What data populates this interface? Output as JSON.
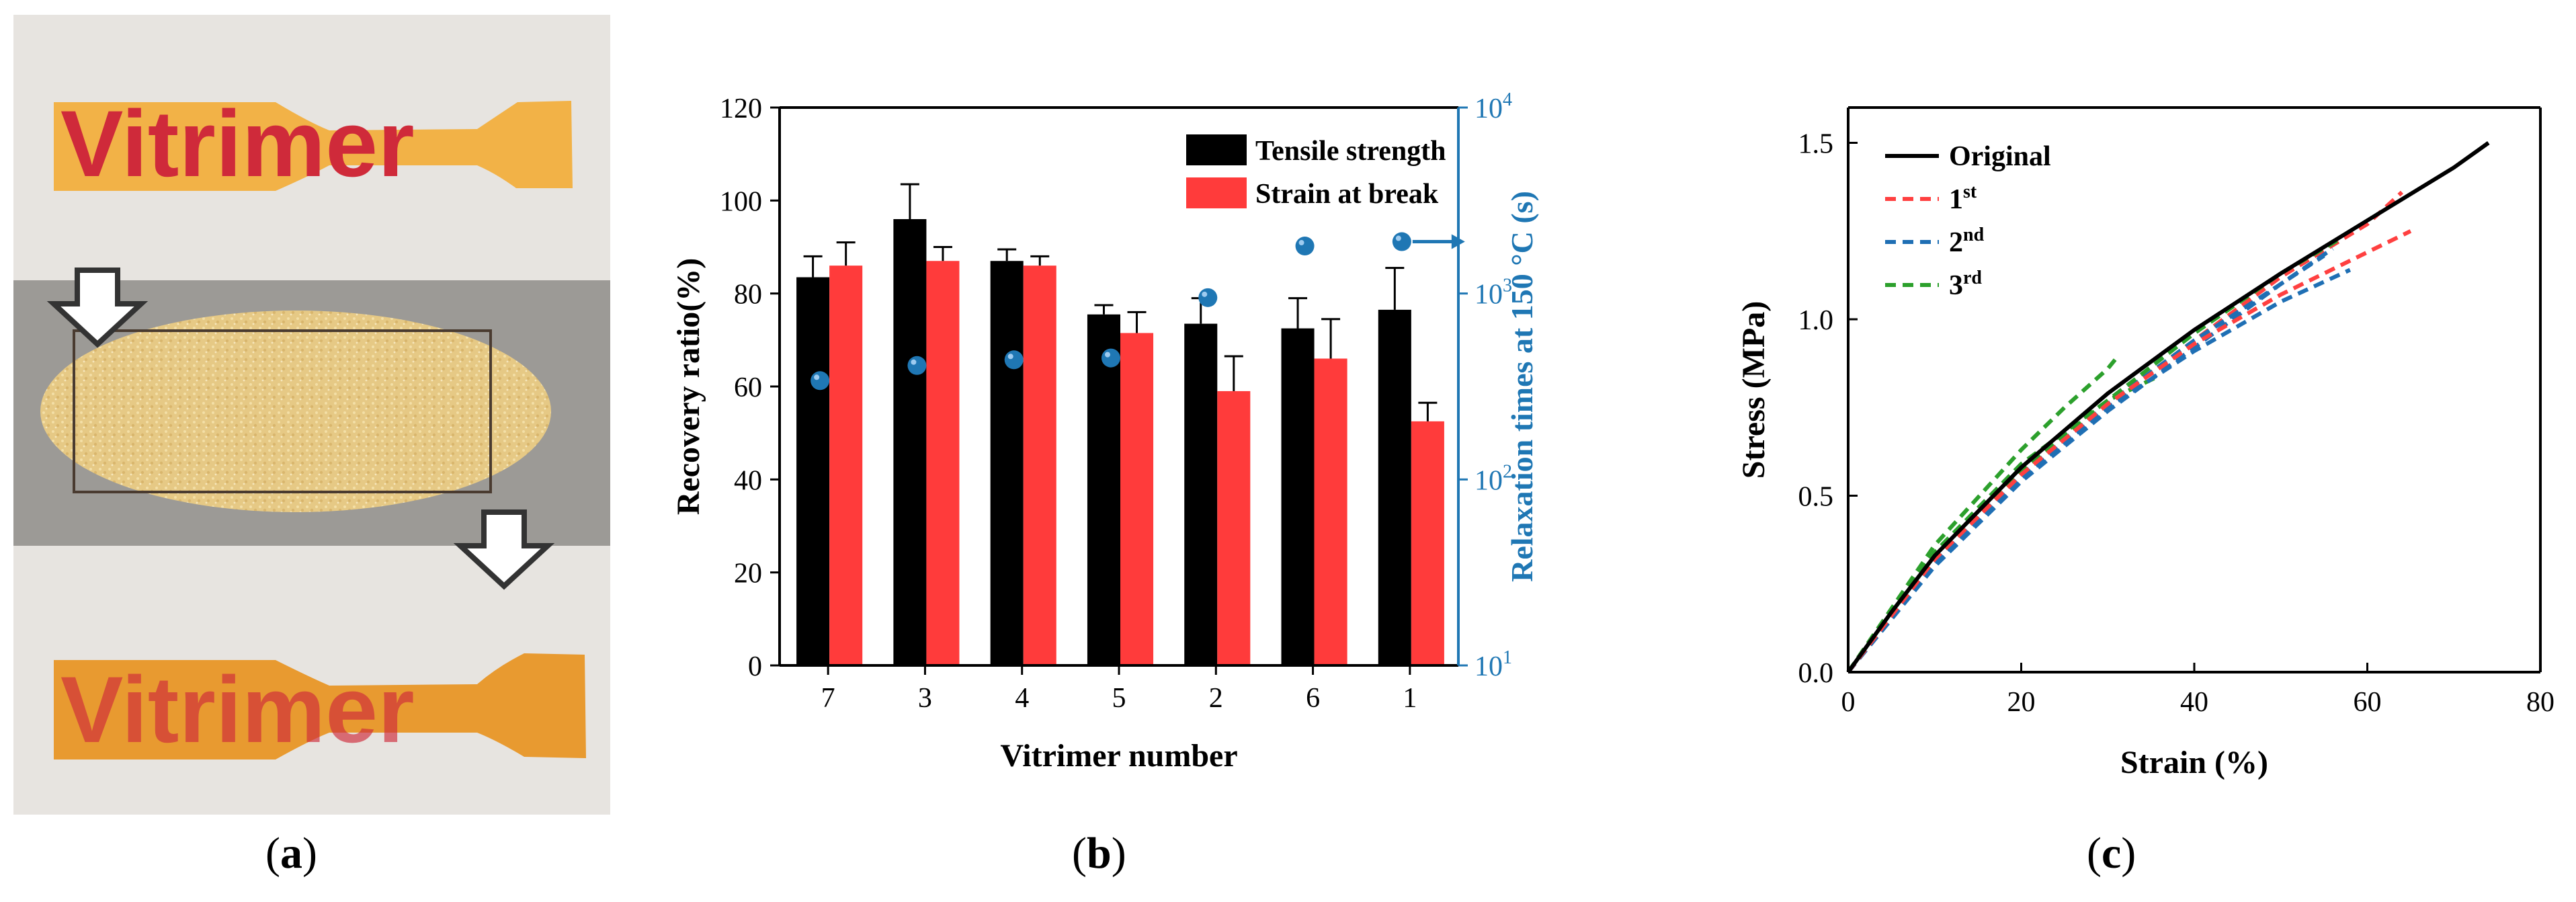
{
  "panel_labels": [
    {
      "open": "(",
      "letter": "a",
      "close": ")"
    },
    {
      "open": "(",
      "letter": "b",
      "close": ")"
    },
    {
      "open": "(",
      "letter": "c",
      "close": ")"
    }
  ],
  "photo": {
    "sample_text_top": "Vitrimer",
    "sample_text_bottom": "Vitrimer",
    "colors": {
      "strip_top": "#f2b247",
      "strip_bottom": "#e89a30",
      "ink": "#cf2a3a",
      "powder": "#e9cf8f",
      "tray": "#9c9a96",
      "background": "#e7e4e0",
      "arrow": "#333333"
    }
  },
  "chart_data": [
    {
      "type": "bar",
      "categories": [
        "7",
        "3",
        "4",
        "5",
        "2",
        "6",
        "1"
      ],
      "xlabel": "Vitrimer number",
      "ylabel": "Recovery ratio(%)",
      "ylim": [
        0,
        120
      ],
      "yticks": [
        0,
        20,
        40,
        60,
        80,
        100,
        120
      ],
      "series": [
        {
          "name": "Tensile strength",
          "color": "#000000",
          "values": [
            83.5,
            96,
            87,
            75.5,
            73.5,
            72.5,
            76.5
          ],
          "errors": [
            4.5,
            7.5,
            2.5,
            2,
            5.5,
            6.5,
            9
          ]
        },
        {
          "name": "Strain at break",
          "color": "#ff3b3b",
          "values": [
            86,
            87,
            86,
            71.5,
            59,
            66,
            52.5
          ],
          "errors": [
            5,
            3,
            2,
            4.5,
            7.5,
            8.5,
            4
          ]
        }
      ],
      "y2label": "Relaxation times at 150 °C (s)",
      "y2scale": "log",
      "y2lim": [
        10,
        10000
      ],
      "y2ticks": [
        {
          "base": "10",
          "exp": "1"
        },
        {
          "base": "10",
          "exp": "2"
        },
        {
          "base": "10",
          "exp": "3"
        },
        {
          "base": "10",
          "exp": "4"
        }
      ],
      "y2color": "#1f77b4",
      "relaxation_times": [
        340,
        410,
        440,
        450,
        950,
        1800,
        1900
      ],
      "arrow_on_last_point": true,
      "legend_position": "top-right",
      "grid": false
    },
    {
      "type": "line",
      "xlabel": "Strain (%)",
      "ylabel": "Stress (MPa)",
      "xlim": [
        0,
        80
      ],
      "ylim": [
        0,
        1.6
      ],
      "xticks": [
        "0",
        "20",
        "40",
        "60",
        "80"
      ],
      "yticks": [
        "0.0",
        "0.5",
        "1.0",
        "1.5"
      ],
      "legend_position": "top-left",
      "grid": false,
      "series": [
        {
          "name": "Original",
          "sup": "",
          "color": "#000000",
          "dash": "solid",
          "x": [
            0,
            5,
            10,
            20,
            30,
            40,
            50,
            60,
            70,
            74
          ],
          "y": [
            0,
            0.17,
            0.33,
            0.58,
            0.79,
            0.97,
            1.13,
            1.28,
            1.43,
            1.5
          ]
        },
        {
          "name": "1",
          "sup": "st",
          "color": "#ff4040",
          "dash": "dashed",
          "x": [
            0,
            10,
            20,
            30,
            40,
            50,
            60,
            65
          ],
          "y": [
            0,
            0.32,
            0.56,
            0.76,
            0.93,
            1.07,
            1.19,
            1.25
          ]
        },
        {
          "name": "2",
          "sup": "nd",
          "color": "#1f6fb4",
          "dash": "dashed",
          "x": [
            0,
            10,
            20,
            30,
            40,
            50,
            58
          ],
          "y": [
            0,
            0.31,
            0.55,
            0.75,
            0.91,
            1.05,
            1.14
          ]
        },
        {
          "name": "3",
          "sup": "rd",
          "color": "#2ca02c",
          "dash": "dashed",
          "x": [
            0,
            10,
            20,
            25,
            30,
            31
          ],
          "y": [
            0,
            0.36,
            0.63,
            0.75,
            0.86,
            0.89
          ]
        }
      ],
      "extra_curves": [
        {
          "color": "#ff4040",
          "x": [
            0,
            10,
            20,
            30,
            40,
            50,
            60,
            64
          ],
          "y": [
            0,
            0.32,
            0.56,
            0.76,
            0.94,
            1.12,
            1.27,
            1.36
          ]
        },
        {
          "color": "#1f6fb4",
          "x": [
            0,
            10,
            20,
            30,
            40,
            50,
            55
          ],
          "y": [
            0,
            0.31,
            0.56,
            0.76,
            0.94,
            1.1,
            1.18
          ]
        },
        {
          "color": "#1f6fb4",
          "x": [
            0,
            10,
            20,
            30,
            40,
            50,
            56
          ],
          "y": [
            0,
            0.3,
            0.54,
            0.74,
            0.92,
            1.1,
            1.2
          ]
        },
        {
          "color": "#2ca02c",
          "x": [
            0,
            10,
            20,
            30,
            36
          ],
          "y": [
            0,
            0.34,
            0.59,
            0.77,
            0.84
          ]
        },
        {
          "color": "#2ca02c",
          "x": [
            0,
            10,
            20,
            30,
            40,
            50,
            57
          ],
          "y": [
            0,
            0.32,
            0.57,
            0.77,
            0.96,
            1.13,
            1.23
          ]
        }
      ]
    }
  ]
}
